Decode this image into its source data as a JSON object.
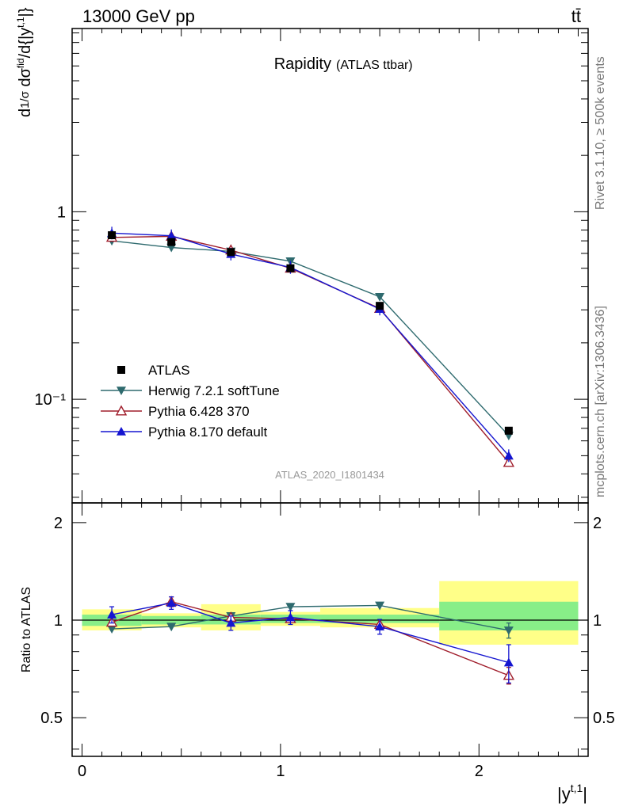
{
  "header": {
    "left": "13000 GeV pp",
    "right": "tt̄"
  },
  "side_labels": {
    "rivet": "Rivet 3.1.10, ≥ 500k events",
    "source": "mcplots.cern.ch [arXiv:1306.3436]"
  },
  "chart_data": [
    {
      "type": "line",
      "role": "main",
      "title": "Rapidity",
      "subtitle": "(ATLAS ttbar)",
      "watermark": "ATLAS_2020_I1801434",
      "ylabel": "1/σ dσ^{fid}/d{|y^{t,1}|}",
      "yscale": "log",
      "xlim": [
        -0.05,
        2.55
      ],
      "ylim": [
        0.028,
        9.5
      ],
      "ytick_labels": [
        "1",
        "10⁻¹"
      ],
      "ytick_values": [
        1,
        0.1
      ],
      "x": [
        0.15,
        0.45,
        0.75,
        1.05,
        1.5,
        2.15
      ],
      "series": [
        {
          "name": "ATLAS",
          "marker": "square",
          "color": "#000000",
          "values": [
            0.75,
            0.69,
            0.61,
            0.5,
            0.315,
            0.068
          ]
        },
        {
          "name": "Herwig 7.2.1 softTune",
          "marker": "triangle-down",
          "color": "#2e6a6e",
          "values": [
            0.7,
            0.645,
            0.615,
            0.545,
            0.352,
            0.064
          ]
        },
        {
          "name": "Pythia 6.428 370",
          "marker": "triangle-up-open",
          "color": "#a01e2c",
          "values": [
            0.73,
            0.74,
            0.625,
            0.5,
            0.305,
            0.046
          ]
        },
        {
          "name": "Pythia 8.170 default",
          "marker": "triangle-up",
          "color": "#1515d0",
          "values": [
            0.77,
            0.745,
            0.595,
            0.505,
            0.303,
            0.05
          ]
        }
      ]
    },
    {
      "type": "line",
      "role": "ratio",
      "ylabel": "Ratio to ATLAS",
      "xlabel": "|y^{t,1}|",
      "xlim": [
        -0.05,
        2.55
      ],
      "ylim": [
        0.38,
        2.3
      ],
      "ytick_labels": [
        "2",
        "1",
        "0.5"
      ],
      "ytick_values": [
        2,
        1,
        0.5
      ],
      "xtick_labels": [
        "0",
        "1",
        "2"
      ],
      "xtick_values": [
        0,
        1,
        2
      ],
      "bands": [
        {
          "x0": 0.0,
          "x1": 0.3,
          "green": [
            0.96,
            1.04
          ],
          "yellow": [
            0.93,
            1.08
          ]
        },
        {
          "x0": 0.3,
          "x1": 0.6,
          "green": [
            0.97,
            1.03
          ],
          "yellow": [
            0.95,
            1.05
          ]
        },
        {
          "x0": 0.6,
          "x1": 0.9,
          "green": [
            0.97,
            1.04
          ],
          "yellow": [
            0.93,
            1.12
          ]
        },
        {
          "x0": 0.9,
          "x1": 1.2,
          "green": [
            0.98,
            1.04
          ],
          "yellow": [
            0.96,
            1.06
          ]
        },
        {
          "x0": 1.2,
          "x1": 1.8,
          "green": [
            0.98,
            1.04
          ],
          "yellow": [
            0.95,
            1.09
          ]
        },
        {
          "x0": 1.8,
          "x1": 2.5,
          "green": [
            0.93,
            1.14
          ],
          "yellow": [
            0.84,
            1.32
          ]
        }
      ],
      "x": [
        0.15,
        0.45,
        0.75,
        1.05,
        1.5,
        2.15
      ],
      "series": [
        {
          "name": "Herwig 7.2.1 softTune",
          "marker": "triangle-down",
          "color": "#2e6a6e",
          "values": [
            0.94,
            0.955,
            1.03,
            1.1,
            1.11,
            0.93
          ],
          "err": [
            0.0,
            0.0,
            0.0,
            0.0,
            0.0,
            0.05
          ]
        },
        {
          "name": "Pythia 6.428 370",
          "marker": "triangle-up-open",
          "color": "#a01e2c",
          "values": [
            0.985,
            1.14,
            1.02,
            1.01,
            0.97,
            0.675
          ],
          "err": [
            0.0,
            0.04,
            0.0,
            0.0,
            0.0,
            0.04
          ]
        },
        {
          "name": "Pythia 8.170 default",
          "marker": "triangle-up",
          "color": "#1515d0",
          "values": [
            1.04,
            1.13,
            0.98,
            1.02,
            0.955,
            0.74
          ],
          "err": [
            0.06,
            0.05,
            0.05,
            0.05,
            0.05,
            0.1
          ]
        }
      ]
    }
  ]
}
